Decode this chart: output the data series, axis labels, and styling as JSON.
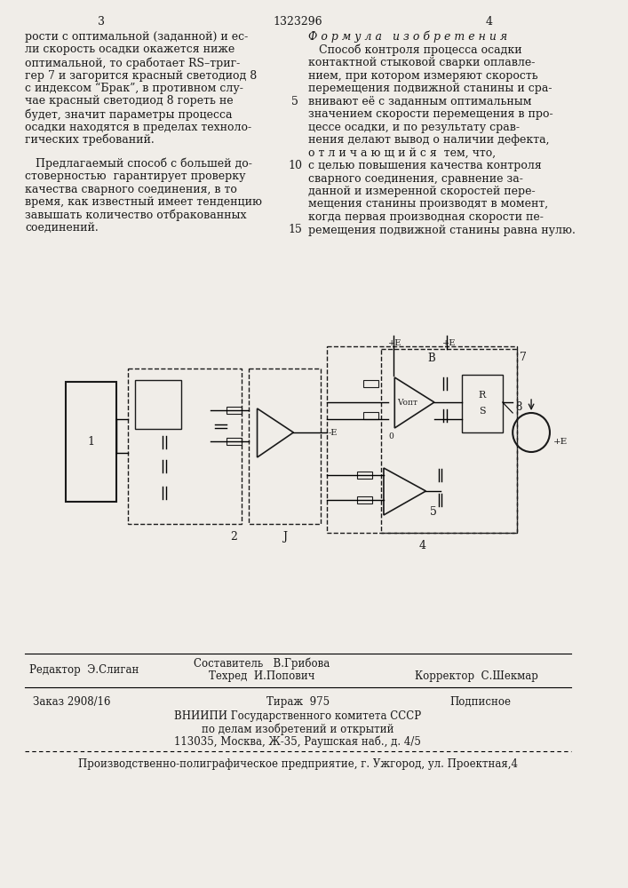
{
  "bg_color": "#f0ede8",
  "page_number_left": "3",
  "page_number_center": "1323296",
  "page_number_right": "4",
  "left_column_text": [
    "рости с оптимальной (заданной) и ес-",
    "ли скорость осадки окажется ниже",
    "оптимальной, то сработает RS–триг-",
    "гер 7 и загорится красный светодиод 8",
    "с индексом “Брак”, в противном слу-",
    "чае красный светодиод 8 гореть не",
    "будет, значит параметры процесса",
    "осадки находятся в пределах техноло-",
    "гических требований."
  ],
  "left_column_text2": [
    "   Предлагаемый способ с большей до-",
    "стоверностью  гарантирует проверку",
    "качества сварного соединения, в то",
    "время, как известный имеет тенденцию",
    "завышать количество отбракованных",
    "соединений."
  ],
  "right_column_header": "Ф о р м у л а   и з о б р е т е н и я",
  "right_column_text": [
    "   Способ контроля процесса осадки",
    "контактной стыковой сварки оплавле-",
    "нием, при котором измеряют скорость",
    "перемещения подвижной станины и сра-",
    "внивают её с заданным оптимальным",
    "значением скорости перемещения в про-",
    "цессе осадки, и по результату срав-",
    "нения делают вывод о наличии дефекта,",
    "о т л и ч а ю щ и й с я  тем, что,",
    "с целью повышения качества контроля",
    "сварного соединения, сравнение за-",
    "данной и измеренной скоростей пере-",
    "мещения станины производят в момент,",
    "когда первая производная скорости пе-",
    "ремещения подвижной станины равна нулю."
  ],
  "footer_editor": "Редактор  Э.Слиган",
  "footer_compiler": "Составитель   В.Грибова",
  "footer_tech": "Техред  И.Попович",
  "footer_corrector": "Корректор  С.Шекмар",
  "footer_order": "Заказ 2908/16",
  "footer_circulation": "Тираж  975",
  "footer_subscription": "Подписное",
  "footer_org1": "ВНИИПИ Государственного комитета СССР",
  "footer_org2": "по делам изобретений и открытий",
  "footer_org3": "113035, Москва, Ж-35, Раушская наб., д. 4/5",
  "footer_bottom": "Производственно-полиграфическое предприятие, г. Ужгород, ул. Проектная,4"
}
